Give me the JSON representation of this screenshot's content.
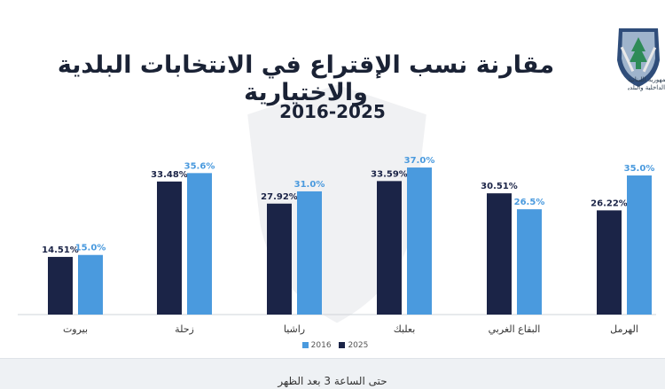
{
  "header": {
    "title": "مقارنة نسب الإقتراع في الانتخابات البلدية والاختيارية",
    "subtitle": "2016-2025",
    "logo_text_line1": "وزارة الداخلية والبلديات",
    "logo_text_line2": "الجمهورية اللبنانية"
  },
  "footer": {
    "note": "حتى الساعة 3 بعد الظهر"
  },
  "colors": {
    "series_2025": "#1b2447",
    "series_2016": "#4a9ade",
    "background": "#ffffff"
  },
  "chart_data": {
    "type": "bar",
    "title": "مقارنة نسب الإقتراع في الانتخابات البلدية والاختيارية",
    "subtitle": "2016-2025",
    "categories": [
      "بيروت",
      "زحلة",
      "راشيا",
      "بعلبك",
      "البقاع الغربي",
      "الهرمل"
    ],
    "series": [
      {
        "name": "2025",
        "values": [
          14.51,
          33.48,
          27.92,
          33.59,
          30.51,
          26.22
        ],
        "labels": [
          "14.51%",
          "33.48%",
          "27.92%",
          "33.59%",
          "30.51%",
          "26.22%"
        ]
      },
      {
        "name": "2016",
        "values": [
          15.0,
          35.6,
          31.0,
          37.0,
          26.5,
          35.0
        ],
        "labels": [
          "15.0%",
          "35.6%",
          "31.0%",
          "37.0%",
          "26.5%",
          "35.0%"
        ]
      }
    ],
    "xlabel": "",
    "ylabel": "",
    "ylim": [
      0,
      40
    ],
    "grid": false,
    "legend": "bottom"
  }
}
